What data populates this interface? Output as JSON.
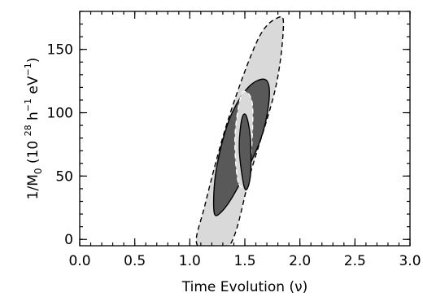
{
  "chart_data": {
    "type": "contour",
    "xlabel": "Time Evolution (ν)",
    "ylabel": {
      "prefix": "1/M",
      "sub": "0",
      "middle": " (10 ",
      "sup1": "28",
      "mid2": " h",
      "sup2": "−1",
      "mid3": " eV",
      "sup3": "−1",
      "suffix": ")"
    },
    "xlim": [
      0.0,
      3.0
    ],
    "ylim": [
      -5,
      180
    ],
    "x_ticks": [
      0.0,
      0.5,
      1.0,
      1.5,
      2.0,
      2.5,
      3.0
    ],
    "x_tick_labels": [
      "0.0",
      "0.5",
      "1.0",
      "1.5",
      "2.0",
      "2.5",
      "3.0"
    ],
    "y_ticks": [
      0,
      50,
      100,
      150
    ],
    "y_tick_labels": [
      "0",
      "50",
      "100",
      "150"
    ],
    "colors": {
      "outer_fill": "#d9d9d9",
      "inner_fill": "#595959",
      "line": "#000000",
      "inner_dashed": "#ffffff"
    },
    "contours": [
      {
        "name": "outer-ellipse",
        "fill": "#d9d9d9",
        "dashed": true,
        "stroke": "#000000",
        "points": [
          [
            1.07,
            -5
          ],
          [
            1.14,
            28
          ],
          [
            1.35,
            95
          ],
          [
            1.62,
            158
          ],
          [
            1.8,
            175
          ],
          [
            1.85,
            168
          ],
          [
            1.78,
            120
          ],
          [
            1.56,
            55
          ],
          [
            1.36,
            -5
          ]
        ]
      },
      {
        "name": "middle-ellipse",
        "fill": "#595959",
        "dashed": false,
        "stroke": "#000000",
        "points": [
          [
            1.22,
            22
          ],
          [
            1.24,
            55
          ],
          [
            1.36,
            95
          ],
          [
            1.53,
            120
          ],
          [
            1.69,
            126
          ],
          [
            1.72,
            110
          ],
          [
            1.64,
            78
          ],
          [
            1.43,
            40
          ],
          [
            1.29,
            22
          ]
        ]
      },
      {
        "name": "inner-ellipse-dashed",
        "fill": "#d9d9d9",
        "dashed": true,
        "stroke": "#ffffff",
        "points": [
          [
            1.44,
            45
          ],
          [
            1.41,
            80
          ],
          [
            1.46,
            112
          ],
          [
            1.52,
            116
          ],
          [
            1.57,
            105
          ],
          [
            1.56,
            70
          ],
          [
            1.52,
            45
          ]
        ]
      },
      {
        "name": "core-ellipse",
        "fill": "#595959",
        "dashed": false,
        "stroke": "#000000",
        "points": [
          [
            1.5,
            40
          ],
          [
            1.45,
            70
          ],
          [
            1.47,
            94
          ],
          [
            1.51,
            98
          ],
          [
            1.55,
            80
          ],
          [
            1.55,
            50
          ]
        ]
      }
    ]
  }
}
